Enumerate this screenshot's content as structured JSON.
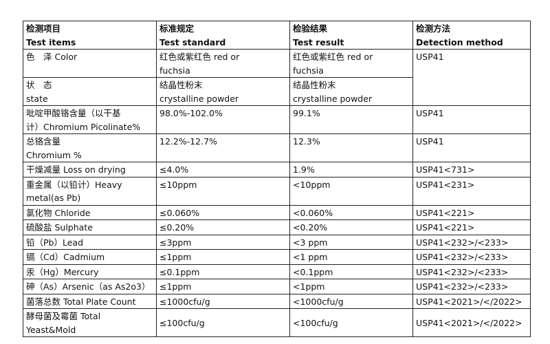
{
  "header": [
    [
      "检测项目",
      "Test items"
    ],
    [
      "标准规定",
      "Test standard"
    ],
    [
      "检验结果",
      "Test result"
    ],
    [
      "检测方法",
      "Detection method"
    ]
  ],
  "rows": [
    {
      "item": [
        "色　泽  Color",
        ""
      ],
      "standard": [
        "红色或紫红色  red or",
        "fuchsia"
      ],
      "result": [
        "红色或紫红色  red or",
        "fuchsia"
      ],
      "method": "USP41",
      "method_rowspan": 2
    },
    {
      "item": [
        "状　态",
        "state"
      ],
      "standard": [
        "结晶性粉末",
        "crystalline powder"
      ],
      "result": [
        "结晶性粉末",
        "crystalline powder"
      ],
      "method": null
    },
    {
      "item": [
        "吡啶甲酸铬含量（以干基",
        "计）Chromium Picolinate%"
      ],
      "standard": [
        "98.0%-102.0%"
      ],
      "result": [
        "99.1%"
      ],
      "method": "USP41"
    },
    {
      "item": [
        "总铬含量",
        "Chromium %"
      ],
      "standard": [
        "12.2%-12.7%"
      ],
      "result": [
        "12.3%"
      ],
      "method": "USP41"
    },
    {
      "item": [
        "干燥减量 Loss on drying"
      ],
      "standard": [
        "≤4.0%"
      ],
      "result": [
        "1.9%"
      ],
      "method": "USP41<731>"
    },
    {
      "item": [
        "重金属（以铅计）Heavy",
        "metal(as Pb)"
      ],
      "standard": [
        "≤10ppm"
      ],
      "result": [
        "<10ppm"
      ],
      "method": "USP41<231>"
    },
    {
      "item": [
        "氯化物 Chloride"
      ],
      "standard": [
        "≤0.060%"
      ],
      "result": [
        "<0.060%"
      ],
      "method": "USP41<221>"
    },
    {
      "item": [
        "硫酸盐 Sulphate"
      ],
      "standard": [
        "≤0.20%"
      ],
      "result": [
        "<0.20%"
      ],
      "method": "USP41<221>"
    },
    {
      "item": [
        "铅（Pb）Lead"
      ],
      "standard": [
        "≤3ppm"
      ],
      "result": [
        "<3 ppm"
      ],
      "method": "USP41<232>/<233>"
    },
    {
      "item": [
        "镉（Cd）Cadmium"
      ],
      "standard": [
        "≤1ppm"
      ],
      "result": [
        "<1 ppm"
      ],
      "method": "USP41<232>/<233>"
    },
    {
      "item": [
        "汞（Hg）Mercury"
      ],
      "standard": [
        "≤0.1ppm"
      ],
      "result": [
        "<0.1ppm"
      ],
      "method": "USP41<232>/<233>"
    },
    {
      "item": [
        "砷（As）Arsenic（as As2o3）"
      ],
      "standard": [
        "≤1ppm"
      ],
      "result": [
        "<1ppm"
      ],
      "method": "USP41<232>/<233>"
    },
    {
      "item": [
        "菌落总数 Total Plate Count"
      ],
      "standard": [
        "≤1000cfu/g"
      ],
      "result": [
        "<1000cfu/g"
      ],
      "method": "USP41<2021>/</2022>"
    },
    {
      "item": [
        "酵母菌及霉菌  Total",
        "Yeast&Mold"
      ],
      "standard": [
        "≤100cfu/g"
      ],
      "result": [
        "<100cfu/g"
      ],
      "method": "USP41<2021>/</2022>",
      "middle": true
    }
  ]
}
